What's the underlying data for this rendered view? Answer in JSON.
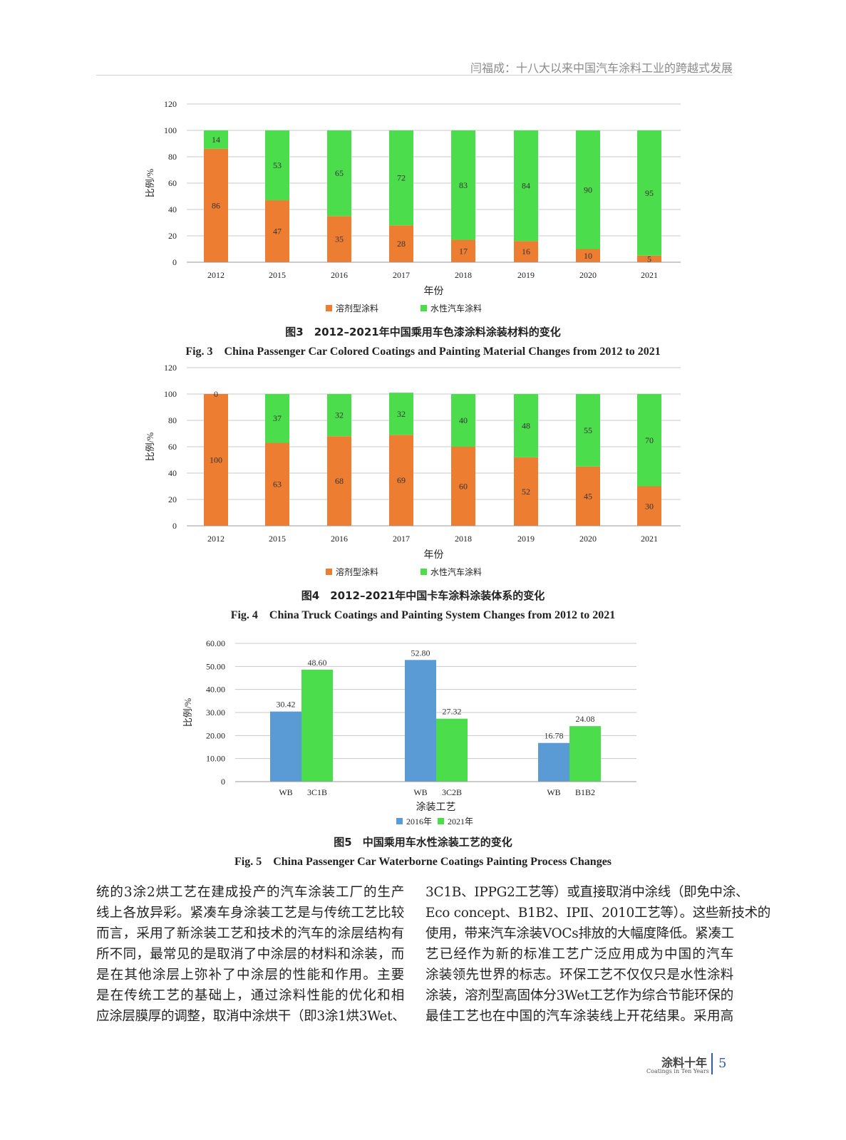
{
  "header": {
    "running_head": "闫福成：十八大以来中国汽车涂料工业的跨越式发展"
  },
  "colors": {
    "solvent": "#ED7D31",
    "water": "#4CDD4C",
    "y2016": "#5B9BD5",
    "y2021": "#4CDD4C",
    "grid": "#c8c8c8"
  },
  "chart_data": [
    {
      "type": "bar",
      "stacked": true,
      "categories": [
        "2012",
        "2015",
        "2016",
        "2017",
        "2018",
        "2019",
        "2020",
        "2021"
      ],
      "series": [
        {
          "name": "溶剂型涂料",
          "values": [
            86,
            47,
            35,
            28,
            17,
            16,
            10,
            5
          ]
        },
        {
          "name": "水性汽车涂料",
          "values": [
            14,
            53,
            65,
            72,
            83,
            84,
            90,
            95
          ]
        }
      ],
      "xlabel": "年份",
      "ylabel": "比例/%",
      "ylim": [
        0,
        120
      ],
      "yticks": [
        "0",
        "20",
        "40",
        "60",
        "80",
        "100",
        "120"
      ],
      "grid": true,
      "legend": "bottom",
      "caption_cn": "图3　2012–2021年中国乘用车色漆涂料涂装材料的变化",
      "caption_en": "Fig. 3　China Passenger Car Colored Coatings and Painting Material Changes from 2012 to 2021"
    },
    {
      "type": "bar",
      "stacked": true,
      "categories": [
        "2012",
        "2015",
        "2016",
        "2017",
        "2018",
        "2019",
        "2020",
        "2021"
      ],
      "series": [
        {
          "name": "溶剂型涂料",
          "values": [
            100,
            63,
            68,
            69,
            60,
            52,
            45,
            30
          ]
        },
        {
          "name": "水性汽车涂料",
          "values": [
            0,
            37,
            32,
            32,
            40,
            48,
            55,
            70
          ]
        }
      ],
      "xlabel": "年份",
      "ylabel": "比例/%",
      "ylim": [
        0,
        120
      ],
      "yticks": [
        "0",
        "20",
        "40",
        "60",
        "80",
        "100",
        "120"
      ],
      "grid": true,
      "legend": "bottom",
      "caption_cn": "图4　2012–2021年中国卡车涂料涂装体系的变化",
      "caption_en": "Fig. 4　China Truck Coatings and Painting System Changes from 2012 to 2021"
    },
    {
      "type": "bar",
      "stacked": false,
      "categories": [
        [
          "WB",
          "3C1B"
        ],
        [
          "WB",
          "3C2B"
        ],
        [
          "WB",
          "B1B2"
        ]
      ],
      "series": [
        {
          "name": "2016年",
          "values": [
            30.42,
            52.8,
            16.78
          ],
          "labels": [
            "30.42",
            "52.80",
            "16.78"
          ]
        },
        {
          "name": "2021年",
          "values": [
            48.6,
            27.32,
            24.08
          ],
          "labels": [
            "48.60",
            "27.32",
            "24.08"
          ]
        }
      ],
      "xlabel": "涂装工艺",
      "ylabel": "比例/%",
      "ylim": [
        0,
        60
      ],
      "yticks": [
        "0",
        "10.00",
        "20.00",
        "30.00",
        "40.00",
        "50.00",
        "60.00"
      ],
      "grid": true,
      "legend": "bottom",
      "caption_cn": "图5　中国乘用车水性涂装工艺的变化",
      "caption_en": "Fig. 5　China Passenger Car Waterborne Coatings Painting Process Changes"
    }
  ],
  "body": {
    "left": [
      "统的3涂2烘工艺在建成投产的汽车涂装工厂的生产",
      "线上各放异彩。紧凑车身涂装工艺是与传统工艺比较",
      "而言，采用了新涂装工艺和技术的汽车的涂层结构有",
      "所不同，最常见的是取消了中涂层的材料和涂装，而",
      "是在其他涂层上弥补了中涂层的性能和作用。主要",
      "是在传统工艺的基础上，通过涂料性能的优化和相",
      "应涂层膜厚的调整，取消中涂烘干（即3涂1烘3Wet、"
    ],
    "right": [
      "3C1B、IPPG2工艺等）或直接取消中涂线（即免中涂、",
      "Eco concept、B1B2、IPⅡ、2010工艺等）。这些新技术的",
      "使用，带来汽车涂装VOCs排放的大幅度降低。紧凑工",
      "艺已经作为新的标准工艺广泛应用成为中国的汽车",
      "涂装领先世界的标志。环保工艺不仅仅只是水性涂料",
      "涂装，溶剂型高固体分3Wet工艺作为综合节能环保的",
      "最佳工艺也在中国的汽车涂装线上开花结果。采用高"
    ]
  },
  "footer": {
    "journal_cn": "涂料十年",
    "journal_en": "Coatings in Ten Years",
    "page": "5"
  }
}
